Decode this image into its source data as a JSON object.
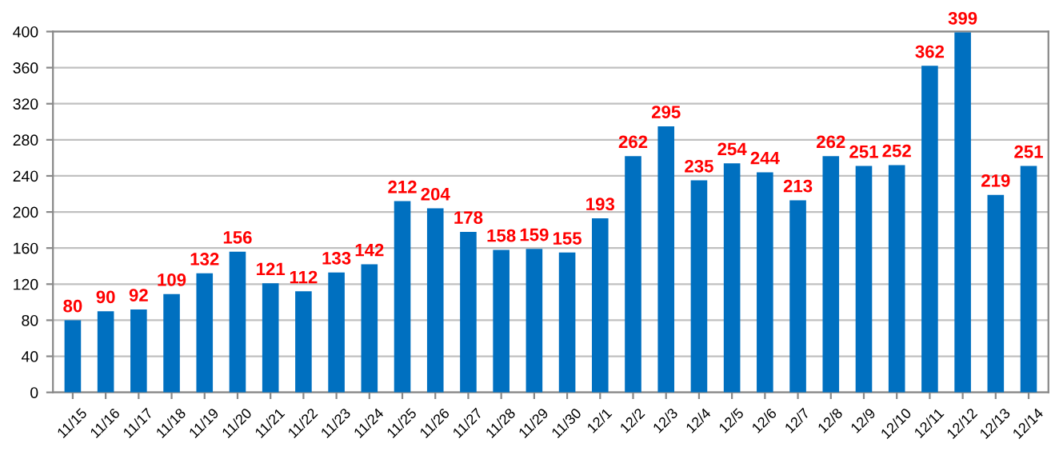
{
  "chart_data": {
    "type": "bar",
    "categories": [
      "11/15",
      "11/16",
      "11/17",
      "11/18",
      "11/19",
      "11/20",
      "11/21",
      "11/22",
      "11/23",
      "11/24",
      "11/25",
      "11/26",
      "11/27",
      "11/28",
      "11/29",
      "11/30",
      "12/1",
      "12/2",
      "12/3",
      "12/4",
      "12/5",
      "12/6",
      "12/7",
      "12/8",
      "12/9",
      "12/10",
      "12/11",
      "12/12",
      "12/13",
      "12/14"
    ],
    "values": [
      80,
      90,
      92,
      109,
      132,
      156,
      121,
      112,
      133,
      142,
      212,
      204,
      178,
      158,
      159,
      155,
      193,
      262,
      295,
      235,
      254,
      244,
      213,
      262,
      251,
      252,
      362,
      399,
      219,
      251
    ],
    "color": "#0070c0",
    "ylim": [
      0,
      400
    ],
    "yticks": [
      0,
      40,
      80,
      120,
      160,
      200,
      240,
      280,
      320,
      360,
      400
    ],
    "grid": "y",
    "data_labels": true
  }
}
